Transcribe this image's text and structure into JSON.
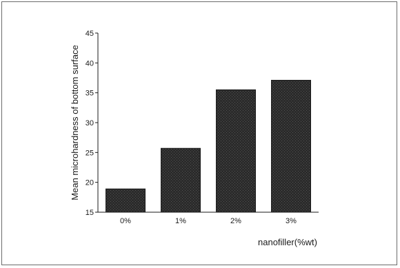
{
  "chart_data": {
    "type": "bar",
    "title": "",
    "xlabel": "nanofiller(%wt)",
    "ylabel": "Mean microhardness of bottom surface",
    "categories": [
      "0%",
      "1%",
      "2%",
      "3%"
    ],
    "values": [
      18.9,
      25.7,
      35.5,
      37.1
    ],
    "ylim": [
      15,
      45
    ],
    "yticks": [
      15,
      20,
      25,
      30,
      35,
      40,
      45
    ],
    "grid": false,
    "legend": "none",
    "bar_color": "#2b2b2b"
  }
}
